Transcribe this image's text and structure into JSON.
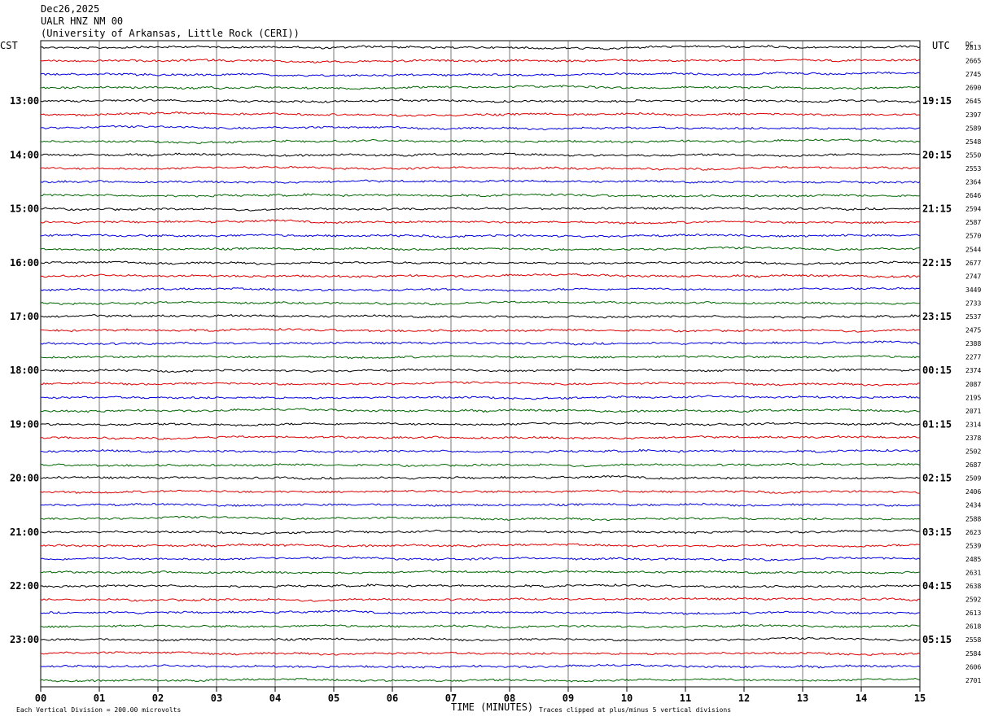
{
  "header": {
    "date": "Dec26,2025",
    "station": "UALR HNZ NM 00",
    "network": "(University of Arkansas, Little Rock (CERI))"
  },
  "axis": {
    "left_title": "CST",
    "right_title": "UTC",
    "dc_title": "DC",
    "xlabel": "TIME (MINUTES)",
    "footer_left": "Each Vertical Division =  200.00 microvolts",
    "footer_right": "Traces clipped at plus/minus 5 vertical divisions"
  },
  "chart_data": {
    "type": "line",
    "title": "UALR HNZ NM 00",
    "xlabel": "TIME (MINUTES)",
    "x_ticks": [
      "00",
      "01",
      "02",
      "03",
      "04",
      "05",
      "06",
      "07",
      "08",
      "09",
      "10",
      "11",
      "12",
      "13",
      "14",
      "15"
    ],
    "xlim": [
      0,
      15
    ],
    "trace_colors": [
      "#000000",
      "#e00000",
      "#0000e0",
      "#006600"
    ],
    "cst_hour_labels": [
      "13:00",
      "14:00",
      "15:00",
      "16:00",
      "17:00",
      "18:00",
      "19:00",
      "20:00",
      "21:00",
      "22:00",
      "23:00"
    ],
    "utc_hour_labels": [
      "19:15",
      "20:15",
      "21:15",
      "22:15",
      "23:15",
      "00:15",
      "01:15",
      "02:15",
      "03:15",
      "04:15",
      "05:15"
    ],
    "dc_offsets": [
      2813,
      2665,
      2745,
      2690,
      2645,
      2397,
      2589,
      2548,
      2550,
      2553,
      2364,
      2646,
      2594,
      2587,
      2570,
      2544,
      2677,
      2747,
      3449,
      2733,
      2537,
      2475,
      2388,
      2277,
      2374,
      2087,
      2195,
      2071,
      2314,
      2378,
      2502,
      2687,
      2509,
      2406,
      2434,
      2588,
      2623,
      2539,
      2485,
      2631,
      2638,
      2592,
      2613,
      2618,
      2558,
      2584,
      2606,
      2701
    ],
    "trace_count": 48,
    "minutes_per_trace": 15,
    "microvolts_per_division": 200.0
  }
}
